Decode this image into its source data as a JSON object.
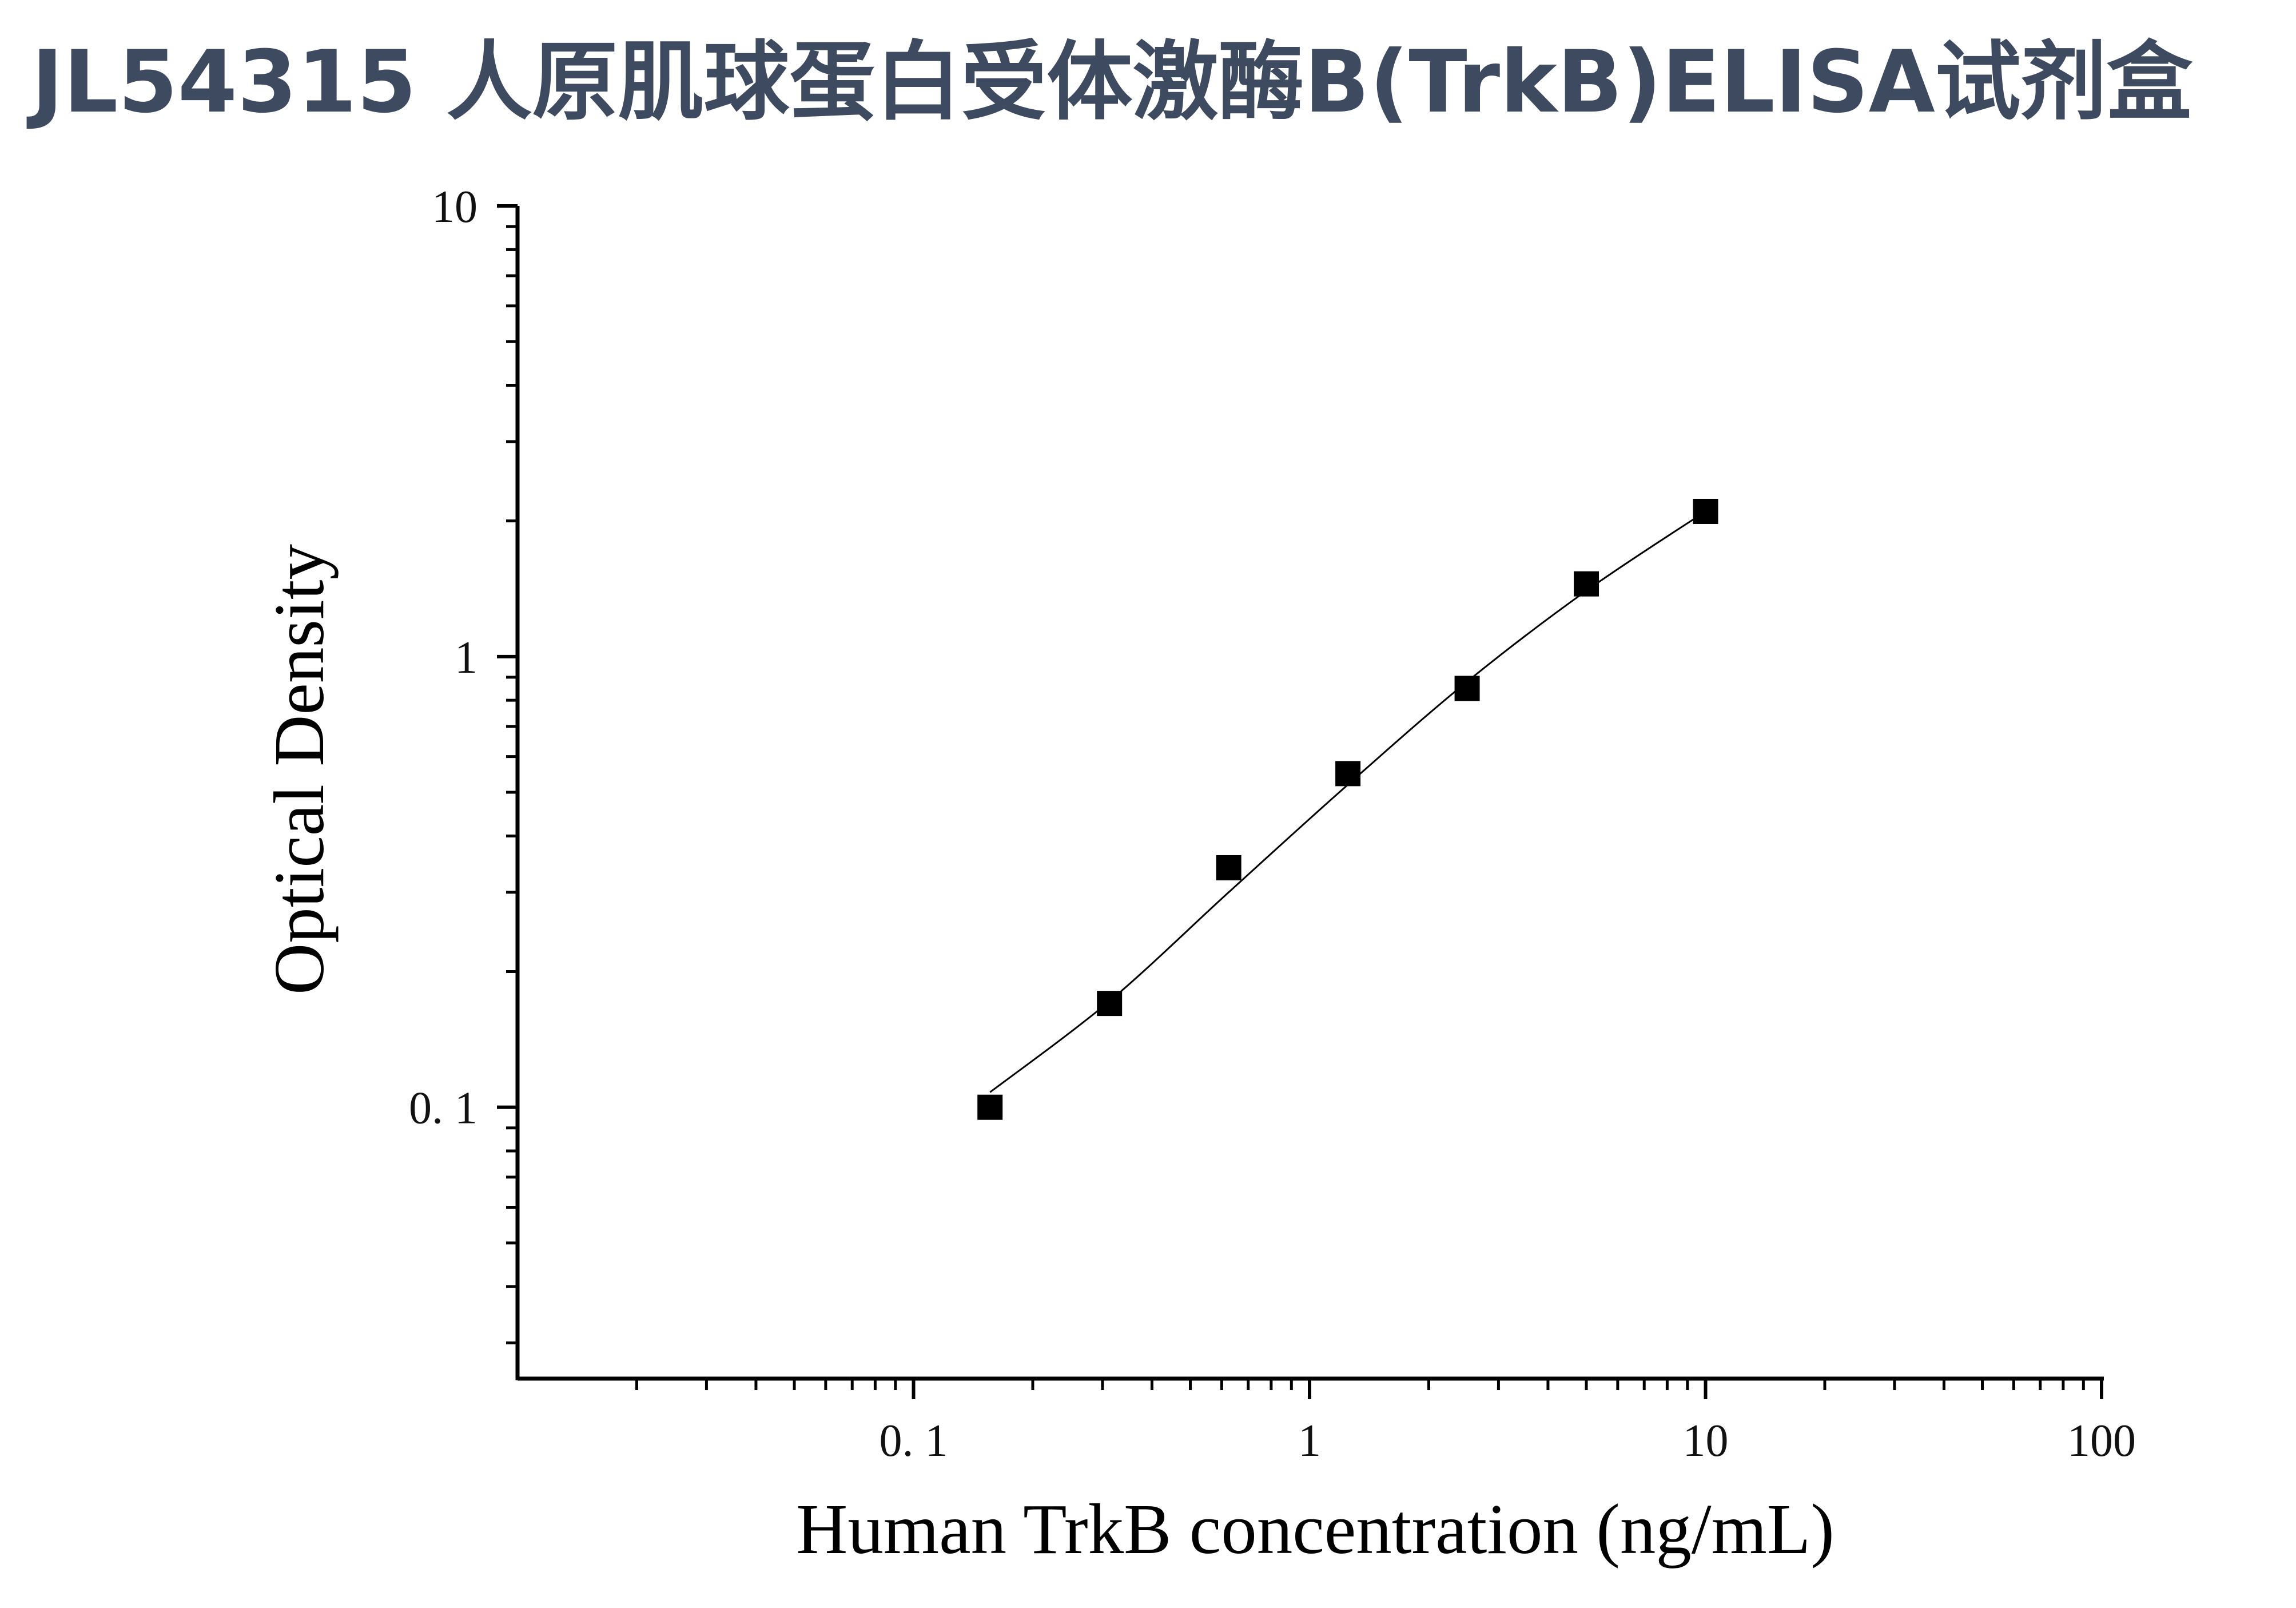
{
  "chart_data": {
    "type": "scatter",
    "title": "JL54315 人原肌球蛋白受体激酶B(TrkB)ELISA试剂盒",
    "xlabel": "Human TrkB concentration (ng/mL)",
    "ylabel": "Optical Density",
    "x_scale": "log",
    "y_scale": "log",
    "xlim": [
      0.01,
      100
    ],
    "ylim": [
      0.025,
      10
    ],
    "x_ticks": [
      {
        "value": 0.1,
        "label": "0. 1"
      },
      {
        "value": 1,
        "label": "1"
      },
      {
        "value": 10,
        "label": "10"
      },
      {
        "value": 100,
        "label": "100"
      }
    ],
    "y_ticks": [
      {
        "value": 10,
        "label": "10"
      },
      {
        "value": 1,
        "label": "1"
      },
      {
        "value": 0.1,
        "label": "0. 1"
      }
    ],
    "grid": false,
    "legend": "none",
    "series": [
      {
        "marker": "square",
        "color": "#000000",
        "x": [
          0.156,
          0.3125,
          0.625,
          1.25,
          2.5,
          5,
          10
        ],
        "y": [
          0.1,
          0.17,
          0.34,
          0.55,
          0.85,
          1.45,
          2.1
        ]
      }
    ],
    "fit_curve": {
      "color": "#000000",
      "x": [
        0.156,
        0.3125,
        0.625,
        1.25,
        2.5,
        5,
        10
      ],
      "y": [
        0.108,
        0.172,
        0.3,
        0.52,
        0.88,
        1.4,
        2.1
      ]
    }
  },
  "colors": {
    "title": "#3d4a60",
    "axis": "#000000",
    "background": "#ffffff"
  }
}
